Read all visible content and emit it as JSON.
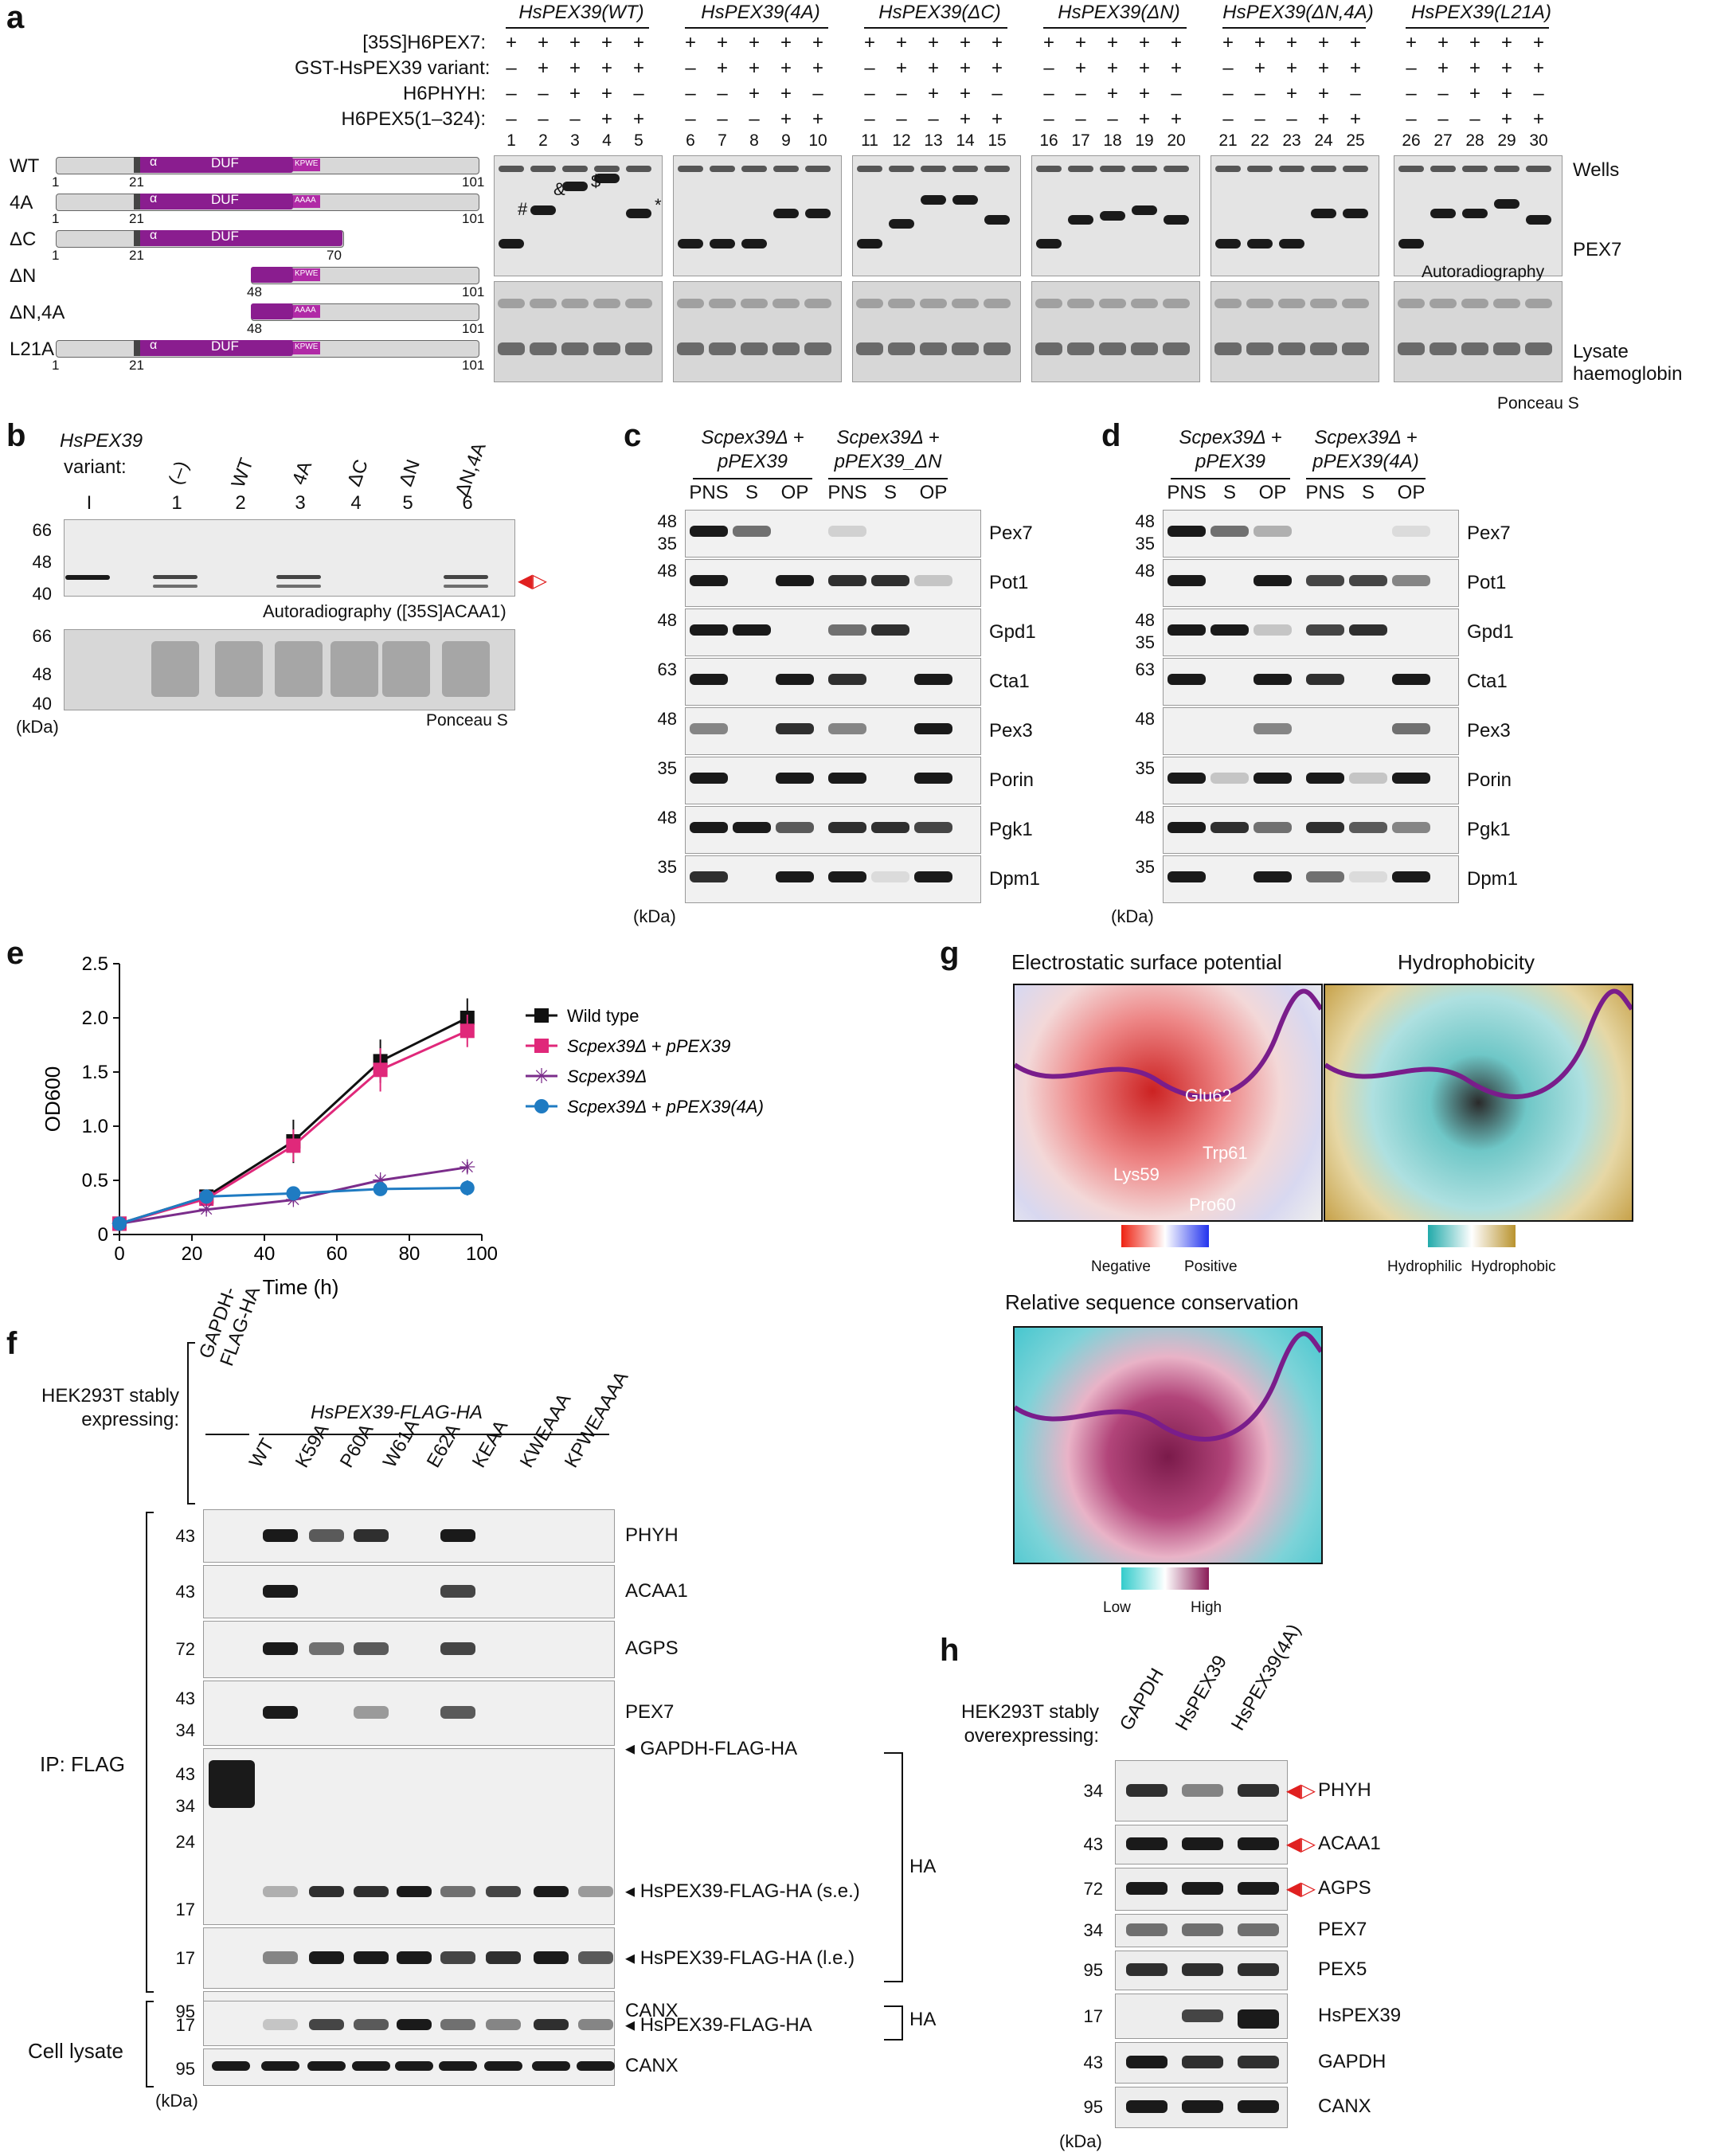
{
  "panel_a": {
    "letter": "a",
    "groups": [
      "HsPEX39(WT)",
      "HsPEX39(4A)",
      "HsPEX39(ΔC)",
      "HsPEX39(ΔN)",
      "HsPEX39(ΔN,4A)",
      "HsPEX39(L21A)"
    ],
    "rows": [
      "[35S]H6PEX7:",
      "GST-HsPEX39 variant:",
      "H6PHYH:",
      "H6PEX5(1–324):"
    ],
    "signs": [
      [
        "+",
        "+",
        "+",
        "+",
        "+"
      ],
      [
        "–",
        "+",
        "+",
        "+",
        "+"
      ],
      [
        "–",
        "–",
        "+",
        "+",
        "–"
      ],
      [
        "–",
        "–",
        "–",
        "+",
        "+"
      ]
    ],
    "lanes": [
      "1",
      "2",
      "3",
      "4",
      "5",
      "6",
      "7",
      "8",
      "9",
      "10",
      "11",
      "12",
      "13",
      "14",
      "15",
      "16",
      "17",
      "18",
      "19",
      "20",
      "21",
      "22",
      "23",
      "24",
      "25",
      "26",
      "27",
      "28",
      "29",
      "30"
    ],
    "constructs": [
      {
        "label": "WT",
        "start": "1",
        "mid": "21",
        "end": "101",
        "motif": "KPWE",
        "has_duf": true
      },
      {
        "label": "4A",
        "start": "1",
        "mid": "21",
        "end": "101",
        "motif": "AAAA",
        "has_duf": true
      },
      {
        "label": "ΔC",
        "start": "1",
        "mid": "21",
        "end": "70",
        "motif": "",
        "has_duf": true
      },
      {
        "label": "ΔN",
        "start": "48",
        "mid": "",
        "end": "101",
        "motif": "KPWE",
        "has_duf": false
      },
      {
        "label": "ΔN,4A",
        "start": "48",
        "mid": "",
        "end": "101",
        "motif": "AAAA",
        "has_duf": false
      },
      {
        "label": "L21A",
        "start": "1",
        "mid": "21",
        "end": "101",
        "motif": "KPWE",
        "has_duf": true
      }
    ],
    "domain_alpha": "α",
    "domain_duf": "DUF",
    "marks": [
      "#",
      "&",
      "$",
      "*"
    ],
    "right_labels": {
      "wells": "Wells",
      "pex7": "PEX7",
      "autorad": "Autoradiography",
      "lysate": "Lysate\nhaemoglobin",
      "ponceau": "Ponceau S"
    }
  },
  "panel_b": {
    "letter": "b",
    "title": "HsPEX39",
    "variant_label": "variant:",
    "variants": [
      "(–)",
      "WT",
      "4A",
      "ΔC",
      "ΔN",
      "ΔN,4A"
    ],
    "lanes": [
      "I",
      "1",
      "2",
      "3",
      "4",
      "5",
      "6"
    ],
    "ladder": [
      "66",
      "48",
      "40"
    ],
    "autorad_label": "Autoradiography ([35S]ACAA1)",
    "ponceau_label": "Ponceau S",
    "kda": "(kDa)"
  },
  "panel_c": {
    "letter": "c",
    "headers": [
      "Scpex39Δ +\npPEX39",
      "Scpex39Δ +\npPEX39_ΔN"
    ],
    "fractions": [
      "PNS",
      "S",
      "OP",
      "PNS",
      "S",
      "OP"
    ],
    "proteins": [
      "Pex7",
      "Pot1",
      "Gpd1",
      "Cta1",
      "Pex3",
      "Porin",
      "Pgk1",
      "Dpm1"
    ],
    "ladders": [
      [
        "48",
        "35"
      ],
      [
        "48"
      ],
      [
        "48"
      ],
      [
        "63"
      ],
      [
        "48"
      ],
      [
        "35"
      ],
      [
        "48"
      ],
      [
        "35"
      ]
    ],
    "kda": "(kDa)"
  },
  "panel_d": {
    "letter": "d",
    "headers": [
      "Scpex39Δ +\npPEX39",
      "Scpex39Δ +\npPEX39(4A)"
    ],
    "fractions": [
      "PNS",
      "S",
      "OP",
      "PNS",
      "S",
      "OP"
    ],
    "proteins": [
      "Pex7",
      "Pot1",
      "Gpd1",
      "Cta1",
      "Pex3",
      "Porin",
      "Pgk1",
      "Dpm1"
    ],
    "ladders": [
      [
        "48",
        "35"
      ],
      [
        "48"
      ],
      [
        "48",
        "35"
      ],
      [
        "63"
      ],
      [
        "48"
      ],
      [
        "35"
      ],
      [
        "48"
      ],
      [
        "35"
      ]
    ],
    "kda": "(kDa)"
  },
  "panel_e": {
    "letter": "e",
    "chart_data": {
      "type": "line",
      "xlabel": "Time (h)",
      "ylabel": "OD600",
      "xlim": [
        0,
        100
      ],
      "ylim": [
        0,
        2.5
      ],
      "xticks": [
        0,
        20,
        40,
        60,
        80,
        100
      ],
      "yticks": [
        0,
        0.5,
        1.0,
        1.5,
        2.0,
        2.5
      ],
      "ytick_labels": [
        "0",
        "0.5",
        "1.0",
        "1.5",
        "2.0",
        "2.5"
      ],
      "legend": "right",
      "series": [
        {
          "name": "Wild type",
          "color": "#111111",
          "marker": "square",
          "x": [
            0,
            24,
            48,
            72,
            96
          ],
          "y": [
            0.1,
            0.35,
            0.86,
            1.6,
            2.0
          ],
          "err": [
            0.02,
            0.04,
            0.2,
            0.2,
            0.18
          ]
        },
        {
          "name": "Scpex39Δ + pPEX39",
          "color": "#e0287a",
          "marker": "square",
          "x": [
            0,
            24,
            48,
            72,
            96
          ],
          "y": [
            0.1,
            0.33,
            0.82,
            1.52,
            1.88
          ],
          "err": [
            0.02,
            0.04,
            0.15,
            0.2,
            0.15
          ]
        },
        {
          "name": "Scpex39Δ",
          "color": "#7b2d8b",
          "marker": "star",
          "x": [
            0,
            24,
            48,
            72,
            96
          ],
          "y": [
            0.1,
            0.23,
            0.32,
            0.5,
            0.62
          ],
          "err": [
            0.02,
            0.03,
            0.03,
            0.04,
            0.05
          ]
        },
        {
          "name": "Scpex39Δ + pPEX39(4A)",
          "color": "#1f7bc2",
          "marker": "circle",
          "x": [
            0,
            24,
            48,
            72,
            96
          ],
          "y": [
            0.1,
            0.35,
            0.38,
            0.42,
            0.43
          ],
          "err": [
            0.02,
            0.04,
            0.04,
            0.05,
            0.07
          ]
        }
      ]
    }
  },
  "panel_f": {
    "letter": "f",
    "stably_label": "HEK293T stably\nexpressing:",
    "gapdh_header": "GAPDH-\nFLAG-HA",
    "pex39_header": "HsPEX39-FLAG-HA",
    "lanes": [
      "WT",
      "K59A",
      "P60A",
      "W61A",
      "E62A",
      "KEAA",
      "KWEAAA",
      "KPWEAAAA"
    ],
    "ip_label": "IP: FLAG",
    "lysate_label": "Cell lysate",
    "rows": [
      {
        "name": "PHYH",
        "ladder": [
          "43"
        ]
      },
      {
        "name": "ACAA1",
        "ladder": [
          "43"
        ]
      },
      {
        "name": "AGPS",
        "ladder": [
          "72"
        ]
      },
      {
        "name": "PEX7",
        "ladder": [
          "43",
          "34"
        ]
      },
      {
        "name": "◂ GAPDH-FLAG-HA",
        "ladder": [
          "43",
          "34",
          "24",
          "17"
        ]
      },
      {
        "name": "◂ HsPEX39-FLAG-HA (l.e.)",
        "ladder": [
          "17"
        ]
      },
      {
        "name": "CANX",
        "ladder": [
          "95"
        ]
      }
    ],
    "se_label": "◂ HsPEX39-FLAG-HA (s.e.)",
    "ha_label": "HA",
    "lysate_rows": [
      {
        "name": "◂ HsPEX39-FLAG-HA",
        "ladder": [
          "17"
        ]
      },
      {
        "name": "CANX",
        "ladder": [
          "95"
        ]
      }
    ],
    "kda": "(kDa)"
  },
  "panel_g": {
    "letter": "g",
    "titles": [
      "Electrostatic surface potential",
      "Hydrophobicity",
      "Relative sequence conservation"
    ],
    "residues": [
      "Glu62",
      "Trp61",
      "Lys59",
      "Pro60"
    ],
    "scale_elec": [
      "Negative",
      "Positive"
    ],
    "scale_hydro": [
      "Hydrophilic",
      "Hydrophobic"
    ],
    "scale_cons": [
      "Low",
      "High"
    ]
  },
  "panel_h": {
    "letter": "h",
    "stably_label": "HEK293T stably\noverexpressing:",
    "lanes": [
      "GAPDH",
      "HsPEX39",
      "HsPEX39(4A)"
    ],
    "rows": [
      {
        "name": "PHYH",
        "ladder": "34"
      },
      {
        "name": "ACAA1",
        "ladder": "43"
      },
      {
        "name": "AGPS",
        "ladder": "72"
      },
      {
        "name": "PEX7",
        "ladder": "34"
      },
      {
        "name": "PEX5",
        "ladder": "95"
      },
      {
        "name": "HsPEX39",
        "ladder": "17"
      },
      {
        "name": "GAPDH",
        "ladder": "43"
      },
      {
        "name": "CANX",
        "ladder": "95"
      }
    ],
    "kda": "(kDa)"
  }
}
